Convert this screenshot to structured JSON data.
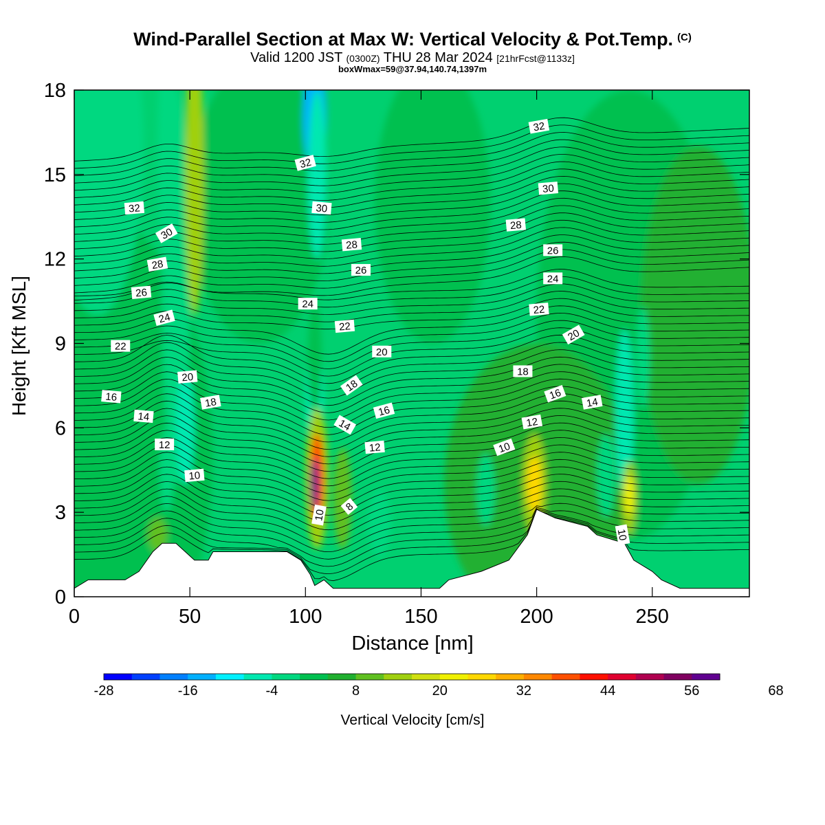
{
  "header": {
    "title": "Wind-Parallel Section at Max W: Vertical Velocity & Pot.Temp.",
    "title_mark": "(C)",
    "subtitle_a": "Valid 1200 JST",
    "subtitle_b": "(0300Z)",
    "subtitle_c": "THU 28 Mar 2024",
    "subtitle_d": "[21hrFcst@1133z]",
    "subtitle2": "boxWmax=59@37.94,140.74,1397m"
  },
  "chart_data": {
    "type": "heatmap",
    "xlabel": "Distance [nm]",
    "ylabel": "Height [Kft MSL]",
    "xlim": [
      0,
      292
    ],
    "ylim": [
      0,
      18
    ],
    "xticks": [
      0,
      50,
      100,
      150,
      200,
      250
    ],
    "yticks": [
      0,
      3,
      6,
      9,
      12,
      15,
      18
    ],
    "colorbar": {
      "label": "Vertical Velocity [cm/s]",
      "min": -28,
      "step": 4,
      "tick_values": [
        -28,
        -16,
        -4,
        8,
        20,
        32,
        44,
        56,
        68
      ],
      "colors": [
        "#0000ff",
        "#0040ff",
        "#0080ff",
        "#00b0ff",
        "#00f0ff",
        "#00e8b0",
        "#00d880",
        "#00c050",
        "#20b030",
        "#60c020",
        "#a0d010",
        "#d0e010",
        "#f0f000",
        "#ffd800",
        "#ffb000",
        "#ff8800",
        "#ff5000",
        "#ff1000",
        "#e00030",
        "#b00050",
        "#800060",
        "#600090"
      ]
    },
    "terrain_profile": [
      [
        0,
        0.3
      ],
      [
        6,
        0.6
      ],
      [
        22,
        0.6
      ],
      [
        28,
        0.9
      ],
      [
        34,
        1.6
      ],
      [
        38,
        1.9
      ],
      [
        44,
        1.9
      ],
      [
        48,
        1.6
      ],
      [
        52,
        1.3
      ],
      [
        58,
        1.3
      ],
      [
        60,
        1.6
      ],
      [
        92,
        1.6
      ],
      [
        98,
        1.3
      ],
      [
        102,
        0.8
      ],
      [
        104,
        0.4
      ],
      [
        108,
        0.6
      ],
      [
        112,
        0.3
      ],
      [
        158,
        0.3
      ],
      [
        162,
        0.6
      ],
      [
        176,
        0.9
      ],
      [
        188,
        1.3
      ],
      [
        196,
        2.2
      ],
      [
        200,
        3.1
      ],
      [
        208,
        2.8
      ],
      [
        222,
        2.5
      ],
      [
        226,
        2.2
      ],
      [
        238,
        1.9
      ],
      [
        242,
        1.3
      ],
      [
        250,
        0.9
      ],
      [
        254,
        0.6
      ],
      [
        262,
        0.3
      ],
      [
        292,
        0.3
      ]
    ],
    "theta_contour_levels": [
      8,
      10,
      12,
      14,
      16,
      18,
      20,
      22,
      24,
      26,
      28,
      30,
      32
    ],
    "contour_labels": [
      {
        "text": "32",
        "x": 26,
        "y": 13.8,
        "rot": -5
      },
      {
        "text": "30",
        "x": 40,
        "y": 12.9,
        "rot": -30
      },
      {
        "text": "28",
        "x": 36,
        "y": 11.8,
        "rot": -10
      },
      {
        "text": "26",
        "x": 29,
        "y": 10.8,
        "rot": -5
      },
      {
        "text": "24",
        "x": 39,
        "y": 9.9,
        "rot": -15
      },
      {
        "text": "22",
        "x": 20,
        "y": 8.9,
        "rot": 0
      },
      {
        "text": "20",
        "x": 49,
        "y": 7.8,
        "rot": -5
      },
      {
        "text": "18",
        "x": 59,
        "y": 6.9,
        "rot": -10
      },
      {
        "text": "16",
        "x": 16,
        "y": 7.1,
        "rot": 5
      },
      {
        "text": "14",
        "x": 30,
        "y": 6.4,
        "rot": 5
      },
      {
        "text": "12",
        "x": 39,
        "y": 5.4,
        "rot": 0
      },
      {
        "text": "10",
        "x": 52,
        "y": 4.3,
        "rot": -5
      },
      {
        "text": "32",
        "x": 100,
        "y": 15.4,
        "rot": -15
      },
      {
        "text": "30",
        "x": 107,
        "y": 13.8,
        "rot": 5
      },
      {
        "text": "28",
        "x": 120,
        "y": 12.5,
        "rot": -5
      },
      {
        "text": "26",
        "x": 124,
        "y": 11.6,
        "rot": 0
      },
      {
        "text": "24",
        "x": 101,
        "y": 10.4,
        "rot": 0
      },
      {
        "text": "22",
        "x": 117,
        "y": 9.6,
        "rot": -5
      },
      {
        "text": "20",
        "x": 133,
        "y": 8.7,
        "rot": 0
      },
      {
        "text": "18",
        "x": 120,
        "y": 7.5,
        "rot": -35
      },
      {
        "text": "16",
        "x": 134,
        "y": 6.6,
        "rot": -15
      },
      {
        "text": "14",
        "x": 117,
        "y": 6.1,
        "rot": 30
      },
      {
        "text": "12",
        "x": 130,
        "y": 5.3,
        "rot": -5
      },
      {
        "text": "10",
        "x": 106,
        "y": 2.9,
        "rot": -80
      },
      {
        "text": "8",
        "x": 119,
        "y": 3.2,
        "rot": -40
      },
      {
        "text": "32",
        "x": 201,
        "y": 16.7,
        "rot": -10
      },
      {
        "text": "30",
        "x": 205,
        "y": 14.5,
        "rot": -5
      },
      {
        "text": "28",
        "x": 191,
        "y": 13.2,
        "rot": -5
      },
      {
        "text": "26",
        "x": 207,
        "y": 12.3,
        "rot": 0
      },
      {
        "text": "24",
        "x": 207,
        "y": 11.3,
        "rot": 0
      },
      {
        "text": "22",
        "x": 201,
        "y": 10.2,
        "rot": -5
      },
      {
        "text": "20",
        "x": 216,
        "y": 9.3,
        "rot": -30
      },
      {
        "text": "18",
        "x": 194,
        "y": 8.0,
        "rot": 0
      },
      {
        "text": "16",
        "x": 208,
        "y": 7.2,
        "rot": -20
      },
      {
        "text": "14",
        "x": 224,
        "y": 6.9,
        "rot": -10
      },
      {
        "text": "12",
        "x": 198,
        "y": 6.2,
        "rot": -10
      },
      {
        "text": "10",
        "x": 186,
        "y": 5.3,
        "rot": -20
      },
      {
        "text": "10",
        "x": 237,
        "y": 2.2,
        "rot": 80
      }
    ]
  }
}
